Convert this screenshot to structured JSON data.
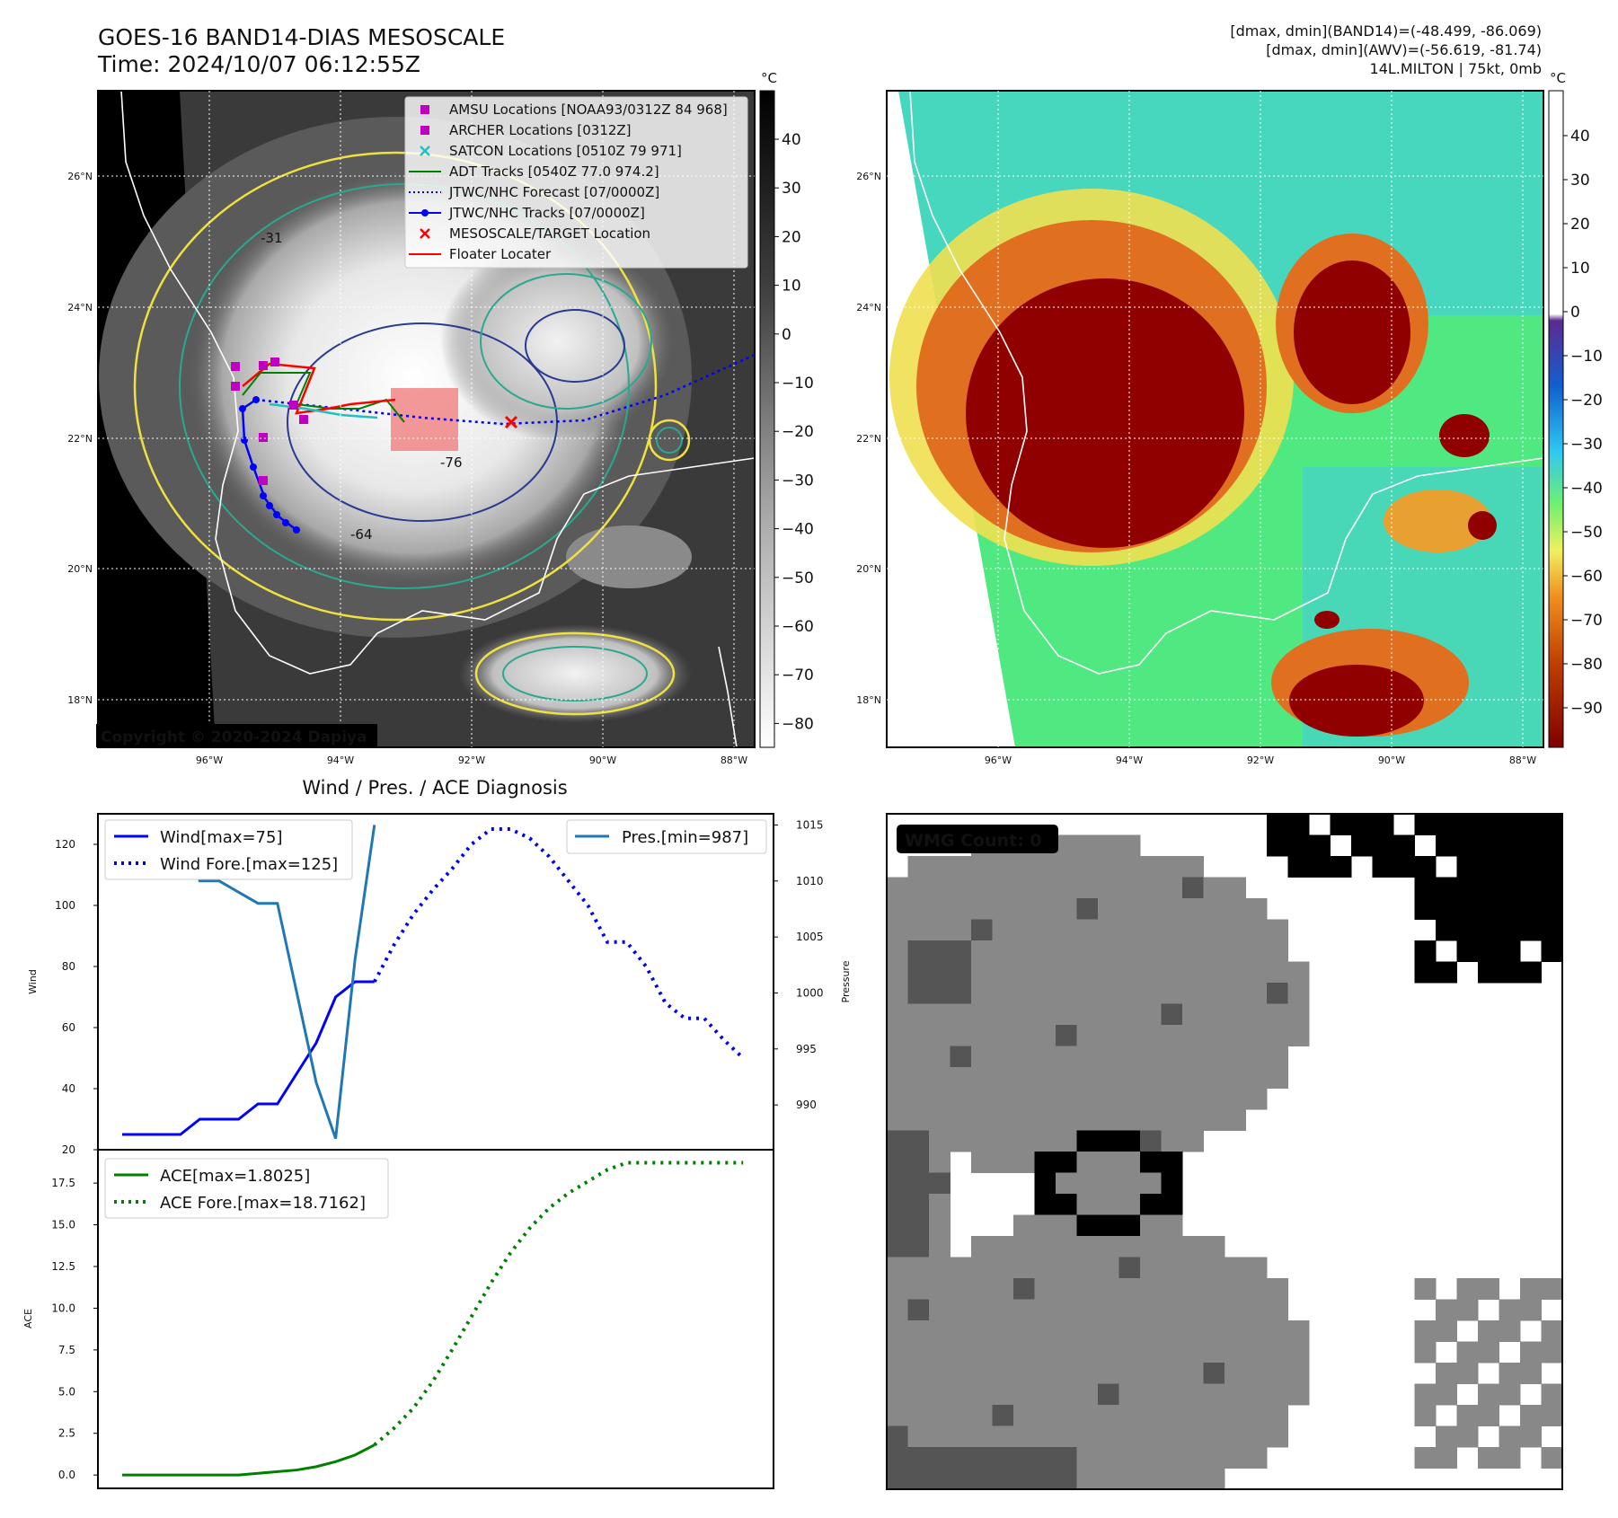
{
  "header": {
    "title": "GOES-16 BAND14-DIAS MESOSCALE",
    "time": "Time: 2024/10/07 06:12:55Z",
    "stats_band14": "[dmax, dmin](BAND14)=(-48.499, -86.069)",
    "stats_awv": "[dmax, dmin](AWV)=(-56.619, -81.74)",
    "storm": "14L.MILTON | 75kt, 0mb"
  },
  "copyright": "Copyright © 2020-2024 Dapiya",
  "map": {
    "lon_labels": [
      "96°W",
      "94°W",
      "92°W",
      "90°W",
      "88°W"
    ],
    "lat_labels": [
      "26°N",
      "24°N",
      "22°N",
      "20°N",
      "18°N"
    ],
    "colorbar_unit": "°C",
    "ir_colorbar_ticks": [
      "40",
      "30",
      "20",
      "10",
      "0",
      "−10",
      "−20",
      "−30",
      "−40",
      "−50",
      "−60",
      "−70",
      "−80"
    ],
    "color_colorbar_ticks": [
      "40",
      "30",
      "20",
      "10",
      "0",
      "−10",
      "−20",
      "−30",
      "−40",
      "−50",
      "−60",
      "−70",
      "−80",
      "−90"
    ],
    "legend": [
      {
        "label": "AMSU Locations [NOAA93/0312Z 84 968]",
        "color": "#c000c0",
        "marker": "square"
      },
      {
        "label": "ARCHER Locations [0312Z]",
        "color": "#c000c0",
        "marker": "square"
      },
      {
        "label": "SATCON Locations [0510Z 79 971]",
        "color": "#20c0c0",
        "marker": "x"
      },
      {
        "label": "ADT Tracks [0540Z 77.0 974.2]",
        "color": "#008000",
        "marker": "line"
      },
      {
        "label": "JTWC/NHC Forecast [07/0000Z]",
        "color": "#0000ff",
        "marker": "dotted"
      },
      {
        "label": "JTWC/NHC Tracks [07/0000Z]",
        "color": "#0000ff",
        "marker": "line-dot"
      },
      {
        "label": "MESOSCALE/TARGET Location",
        "color": "#ff0000",
        "marker": "x"
      },
      {
        "label": "Floater Locater",
        "color": "#ff0000",
        "marker": "line"
      }
    ],
    "contour_labels": [
      "-31",
      "-64",
      "-76"
    ]
  },
  "diag": {
    "title": "Wind / Pres. / ACE Diagnosis",
    "wind_ylabel": "Wind",
    "pres_ylabel": "Pressure",
    "ace_ylabel": "ACE",
    "wind_ticks": [
      "120",
      "100",
      "80",
      "60",
      "40",
      "20"
    ],
    "pres_ticks": [
      "1015",
      "1010",
      "1005",
      "1000",
      "995",
      "990"
    ],
    "ace_ticks": [
      "17.5",
      "15.0",
      "12.5",
      "10.0",
      "7.5",
      "5.0",
      "2.5",
      "0.0"
    ],
    "legend_wind": "Wind[max=75]",
    "legend_wind_fore": "Wind Fore.[max=125]",
    "legend_pres": "Pres.[min=987]",
    "legend_ace": "ACE[max=1.8025]",
    "legend_ace_fore": "ACE Fore.[max=18.7162]"
  },
  "wmg": {
    "label": "WMG Count: 0"
  },
  "chart_data": [
    {
      "type": "line",
      "name": "wind",
      "ylim": [
        20,
        130
      ],
      "series": [
        {
          "name": "Wind[max=75]",
          "x": [
            0,
            1,
            2,
            3,
            4,
            5,
            6,
            7,
            8,
            9,
            10,
            11,
            12,
            13
          ],
          "values": [
            25,
            25,
            25,
            25,
            30,
            30,
            30,
            35,
            35,
            45,
            55,
            70,
            75,
            75
          ],
          "color": "#0000ff",
          "style": "solid"
        },
        {
          "name": "Wind Fore.[max=125]",
          "x": [
            13,
            14,
            15,
            16,
            17,
            18,
            19,
            20,
            21,
            22,
            23,
            24,
            25,
            26,
            27,
            28,
            29,
            30,
            31,
            32
          ],
          "values": [
            75,
            87,
            97,
            105,
            112,
            120,
            125,
            125,
            122,
            116,
            108,
            100,
            88,
            88,
            80,
            68,
            63,
            63,
            56,
            50
          ],
          "color": "#0000ff",
          "style": "dotted"
        }
      ]
    },
    {
      "type": "line",
      "name": "pressure",
      "ylim": [
        986,
        1016
      ],
      "series": [
        {
          "name": "Pres.[min=987]",
          "x": [
            1,
            2,
            3,
            4,
            5,
            6,
            7,
            8,
            9,
            10,
            11,
            12,
            13
          ],
          "values": [
            1015,
            1015,
            1015,
            1010,
            1010,
            1009,
            1008,
            1008,
            1000,
            992,
            987,
            1003,
            1015
          ],
          "color": "#1f77b4",
          "style": "solid"
        }
      ]
    },
    {
      "type": "line",
      "name": "ace",
      "ylim": [
        -0.8,
        19.5
      ],
      "series": [
        {
          "name": "ACE[max=1.8025]",
          "x": [
            0,
            1,
            2,
            3,
            4,
            5,
            6,
            7,
            8,
            9,
            10,
            11,
            12,
            13
          ],
          "values": [
            0,
            0,
            0,
            0,
            0,
            0,
            0,
            0.1,
            0.2,
            0.3,
            0.5,
            0.8,
            1.2,
            1.8025
          ],
          "color": "#008000",
          "style": "solid"
        },
        {
          "name": "ACE Fore.[max=18.7162]",
          "x": [
            13,
            14,
            15,
            16,
            17,
            18,
            19,
            20,
            21,
            22,
            23,
            24,
            25,
            26,
            27,
            28,
            29,
            30,
            31,
            32
          ],
          "values": [
            1.8025,
            2.8,
            4.0,
            5.6,
            7.5,
            9.5,
            11.5,
            13.3,
            14.8,
            16.0,
            16.9,
            17.6,
            18.3,
            18.7162,
            18.7162,
            18.7162,
            18.7162,
            18.7162,
            18.7162,
            18.7162
          ],
          "color": "#008000",
          "style": "dotted"
        }
      ]
    }
  ]
}
